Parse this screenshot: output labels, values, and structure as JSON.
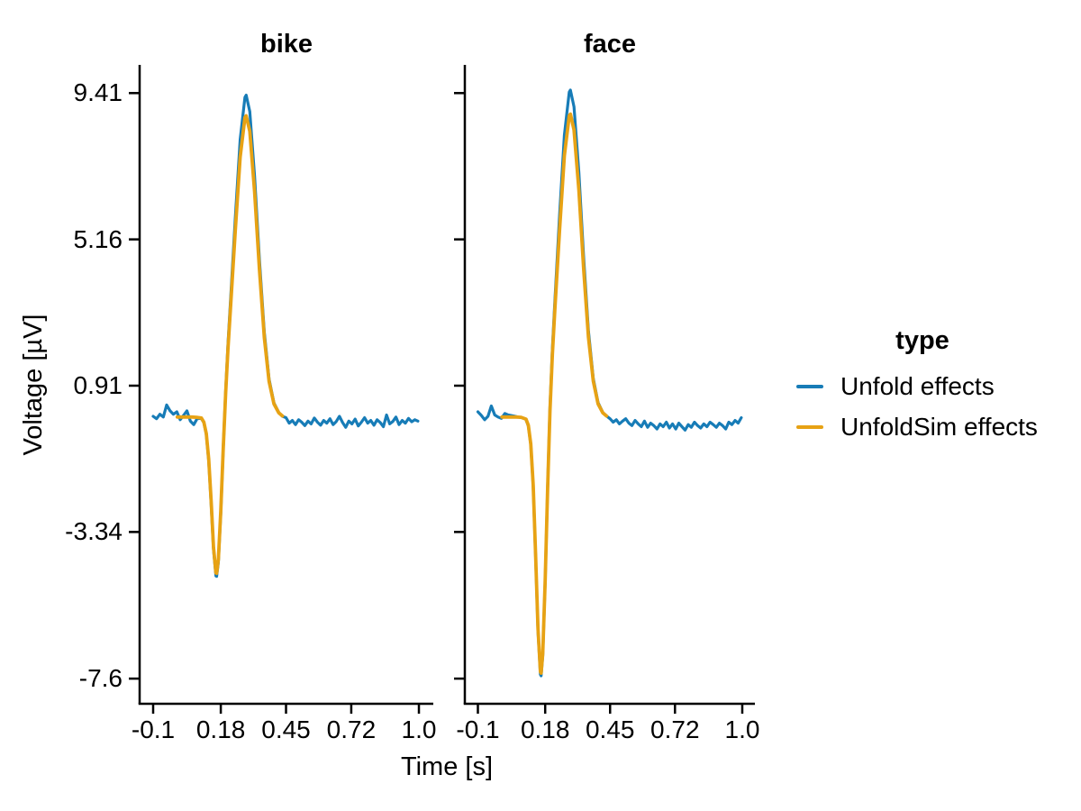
{
  "chart_data": {
    "type": "line",
    "xlabel": "Time [s]",
    "ylabel": "Voltage [µV]",
    "grid": false,
    "xlim": [
      -0.156,
      1.06
    ],
    "ylim": [
      -8.4,
      10.25
    ],
    "xticks": [
      -0.1,
      0.18,
      0.45,
      0.72,
      1.0
    ],
    "xtick_labels": [
      "-0.1",
      "0.18",
      "0.45",
      "0.72",
      "1.0"
    ],
    "yticks": [
      9.41,
      5.16,
      0.91,
      -3.34,
      -7.6
    ],
    "ytick_labels": [
      "9.41",
      "5.16",
      "0.91",
      "-3.34",
      "-7.6"
    ],
    "legend": {
      "title": "type",
      "position": "right",
      "entries": [
        {
          "label": "Unfold effects",
          "color": "#177cb7"
        },
        {
          "label": "UnfoldSim effects",
          "color": "#e7a214"
        }
      ]
    },
    "panels": [
      {
        "title": "bike",
        "series": [
          {
            "name": "Unfold effects",
            "color": "#177cb7",
            "points": [
              [
                -0.1,
                0.02
              ],
              [
                -0.086,
                -0.05
              ],
              [
                -0.072,
                0.08
              ],
              [
                -0.058,
                0.0
              ],
              [
                -0.044,
                0.35
              ],
              [
                -0.03,
                0.18
              ],
              [
                -0.016,
                0.08
              ],
              [
                -0.002,
                0.15
              ],
              [
                0.012,
                -0.08
              ],
              [
                0.026,
                0.05
              ],
              [
                0.04,
                0.18
              ],
              [
                0.054,
                -0.12
              ],
              [
                0.068,
                -0.22
              ],
              [
                0.082,
                -0.05
              ],
              [
                0.096,
                -0.04
              ],
              [
                0.1,
                -0.05
              ],
              [
                0.11,
                -0.16
              ],
              [
                0.12,
                -0.5
              ],
              [
                0.13,
                -1.28
              ],
              [
                0.14,
                -2.54
              ],
              [
                0.15,
                -3.85
              ],
              [
                0.16,
                -4.62
              ],
              [
                0.163,
                -4.63
              ],
              [
                0.17,
                -4.22
              ],
              [
                0.18,
                -2.78
              ],
              [
                0.19,
                -0.93
              ],
              [
                0.2,
                0.76
              ],
              [
                0.21,
                2.14
              ],
              [
                0.22,
                3.35
              ],
              [
                0.24,
                5.79
              ],
              [
                0.26,
                8.06
              ],
              [
                0.28,
                9.29
              ],
              [
                0.285,
                9.35
              ],
              [
                0.3,
                8.87
              ],
              [
                0.32,
                7.0
              ],
              [
                0.34,
                4.57
              ],
              [
                0.36,
                2.47
              ],
              [
                0.38,
                1.1
              ],
              [
                0.4,
                0.41
              ],
              [
                0.42,
                0.13
              ],
              [
                0.435,
                0.02
              ],
              [
                0.45,
                -0.02
              ],
              [
                0.463,
                -0.18
              ],
              [
                0.476,
                -0.1
              ],
              [
                0.489,
                -0.22
              ],
              [
                0.502,
                -0.08
              ],
              [
                0.515,
                -0.15
              ],
              [
                0.528,
                -0.25
              ],
              [
                0.541,
                -0.12
              ],
              [
                0.554,
                -0.2
              ],
              [
                0.567,
                -0.03
              ],
              [
                0.58,
                -0.15
              ],
              [
                0.593,
                -0.24
              ],
              [
                0.606,
                -0.1
              ],
              [
                0.619,
                -0.18
              ],
              [
                0.632,
                -0.05
              ],
              [
                0.645,
                -0.22
              ],
              [
                0.658,
                -0.13
              ],
              [
                0.671,
                0.02
              ],
              [
                0.684,
                -0.16
              ],
              [
                0.697,
                -0.3
              ],
              [
                0.71,
                -0.12
              ],
              [
                0.723,
                -0.2
              ],
              [
                0.736,
                -0.06
              ],
              [
                0.749,
                -0.26
              ],
              [
                0.762,
                -0.15
              ],
              [
                0.775,
                -0.02
              ],
              [
                0.788,
                -0.18
              ],
              [
                0.801,
                -0.1
              ],
              [
                0.814,
                -0.24
              ],
              [
                0.827,
                -0.08
              ],
              [
                0.84,
                -0.16
              ],
              [
                0.853,
                -0.28
              ],
              [
                0.866,
                0.06
              ],
              [
                0.879,
                -0.2
              ],
              [
                0.892,
                -0.13
              ],
              [
                0.905,
                0.0
              ],
              [
                0.918,
                -0.22
              ],
              [
                0.931,
                -0.1
              ],
              [
                0.944,
                -0.18
              ],
              [
                0.957,
                -0.04
              ],
              [
                0.97,
                -0.14
              ],
              [
                0.983,
                -0.08
              ],
              [
                0.996,
                -0.12
              ]
            ]
          },
          {
            "name": "UnfoldSim effects",
            "color": "#e7a214",
            "points": [
              [
                0.0,
                0.0
              ],
              [
                0.02,
                0.0
              ],
              [
                0.04,
                0.0
              ],
              [
                0.06,
                0.0
              ],
              [
                0.08,
                -0.01
              ],
              [
                0.1,
                -0.03
              ],
              [
                0.11,
                -0.15
              ],
              [
                0.12,
                -0.48
              ],
              [
                0.13,
                -1.23
              ],
              [
                0.14,
                -2.44
              ],
              [
                0.15,
                -3.78
              ],
              [
                0.16,
                -4.53
              ],
              [
                0.163,
                -4.54
              ],
              [
                0.17,
                -4.14
              ],
              [
                0.18,
                -2.72
              ],
              [
                0.19,
                -0.92
              ],
              [
                0.2,
                0.69
              ],
              [
                0.21,
                1.99
              ],
              [
                0.22,
                3.13
              ],
              [
                0.24,
                5.42
              ],
              [
                0.26,
                7.55
              ],
              [
                0.28,
                8.7
              ],
              [
                0.285,
                8.75
              ],
              [
                0.3,
                8.3
              ],
              [
                0.32,
                6.55
              ],
              [
                0.34,
                4.28
              ],
              [
                0.36,
                2.31
              ],
              [
                0.38,
                1.03
              ],
              [
                0.4,
                0.38
              ],
              [
                0.42,
                0.12
              ],
              [
                0.435,
                0.03
              ]
            ]
          }
        ]
      },
      {
        "title": "face",
        "series": [
          {
            "name": "Unfold effects",
            "color": "#177cb7",
            "points": [
              [
                -0.1,
                0.15
              ],
              [
                -0.086,
                0.05
              ],
              [
                -0.072,
                -0.08
              ],
              [
                -0.058,
                0.02
              ],
              [
                -0.044,
                0.32
              ],
              [
                -0.03,
                0.06
              ],
              [
                -0.016,
                0.0
              ],
              [
                -0.002,
                -0.04
              ],
              [
                0.012,
                0.1
              ],
              [
                0.026,
                0.06
              ],
              [
                0.04,
                0.04
              ],
              [
                0.054,
                0.02
              ],
              [
                0.068,
                0.0
              ],
              [
                0.082,
                -0.02
              ],
              [
                0.096,
                -0.05
              ],
              [
                0.1,
                -0.08
              ],
              [
                0.11,
                -0.26
              ],
              [
                0.12,
                -0.8
              ],
              [
                0.13,
                -2.01
              ],
              [
                0.14,
                -4.0
              ],
              [
                0.15,
                -6.21
              ],
              [
                0.16,
                -7.48
              ],
              [
                0.163,
                -7.52
              ],
              [
                0.17,
                -6.93
              ],
              [
                0.18,
                -4.77
              ],
              [
                0.19,
                -2.06
              ],
              [
                0.2,
                0.27
              ],
              [
                0.21,
                2.0
              ],
              [
                0.22,
                3.35
              ],
              [
                0.24,
                5.88
              ],
              [
                0.26,
                8.19
              ],
              [
                0.28,
                9.44
              ],
              [
                0.285,
                9.5
              ],
              [
                0.3,
                9.01
              ],
              [
                0.32,
                7.11
              ],
              [
                0.34,
                4.64
              ],
              [
                0.36,
                2.51
              ],
              [
                0.38,
                1.12
              ],
              [
                0.4,
                0.42
              ],
              [
                0.42,
                0.13
              ],
              [
                0.435,
                0.03
              ],
              [
                0.45,
                -0.05
              ],
              [
                0.463,
                -0.15
              ],
              [
                0.476,
                -0.08
              ],
              [
                0.489,
                -0.2
              ],
              [
                0.502,
                -0.12
              ],
              [
                0.515,
                -0.05
              ],
              [
                0.528,
                -0.18
              ],
              [
                0.541,
                -0.25
              ],
              [
                0.554,
                -0.1
              ],
              [
                0.567,
                -0.2
              ],
              [
                0.58,
                -0.28
              ],
              [
                0.593,
                -0.12
              ],
              [
                0.606,
                -0.3
              ],
              [
                0.619,
                -0.18
              ],
              [
                0.632,
                -0.25
              ],
              [
                0.645,
                -0.35
              ],
              [
                0.658,
                -0.2
              ],
              [
                0.671,
                -0.28
              ],
              [
                0.684,
                -0.15
              ],
              [
                0.697,
                -0.32
              ],
              [
                0.71,
                -0.2
              ],
              [
                0.723,
                -0.35
              ],
              [
                0.736,
                -0.18
              ],
              [
                0.749,
                -0.28
              ],
              [
                0.762,
                -0.38
              ],
              [
                0.775,
                -0.22
              ],
              [
                0.788,
                -0.3
              ],
              [
                0.801,
                -0.15
              ],
              [
                0.814,
                -0.25
              ],
              [
                0.827,
                -0.32
              ],
              [
                0.84,
                -0.2
              ],
              [
                0.853,
                -0.28
              ],
              [
                0.866,
                -0.15
              ],
              [
                0.879,
                -0.22
              ],
              [
                0.892,
                -0.3
              ],
              [
                0.905,
                -0.18
              ],
              [
                0.918,
                -0.25
              ],
              [
                0.931,
                -0.35
              ],
              [
                0.944,
                -0.15
              ],
              [
                0.957,
                -0.22
              ],
              [
                0.97,
                -0.1
              ],
              [
                0.983,
                -0.18
              ],
              [
                0.996,
                -0.02
              ]
            ]
          },
          {
            "name": "UnfoldSim effects",
            "color": "#e7a214",
            "points": [
              [
                0.0,
                0.0
              ],
              [
                0.02,
                0.0
              ],
              [
                0.04,
                0.0
              ],
              [
                0.06,
                0.0
              ],
              [
                0.08,
                -0.01
              ],
              [
                0.1,
                -0.06
              ],
              [
                0.11,
                -0.24
              ],
              [
                0.12,
                -0.78
              ],
              [
                0.13,
                -1.98
              ],
              [
                0.14,
                -3.95
              ],
              [
                0.15,
                -6.14
              ],
              [
                0.16,
                -7.4
              ],
              [
                0.163,
                -7.44
              ],
              [
                0.17,
                -6.87
              ],
              [
                0.18,
                -4.75
              ],
              [
                0.19,
                -2.1
              ],
              [
                0.2,
                0.17
              ],
              [
                0.21,
                1.82
              ],
              [
                0.22,
                3.1
              ],
              [
                0.24,
                5.44
              ],
              [
                0.26,
                7.59
              ],
              [
                0.28,
                8.75
              ],
              [
                0.285,
                8.8
              ],
              [
                0.3,
                8.34
              ],
              [
                0.32,
                6.59
              ],
              [
                0.34,
                4.3
              ],
              [
                0.36,
                2.32
              ],
              [
                0.38,
                1.04
              ],
              [
                0.4,
                0.38
              ],
              [
                0.42,
                0.12
              ],
              [
                0.435,
                0.03
              ]
            ]
          }
        ]
      }
    ]
  }
}
